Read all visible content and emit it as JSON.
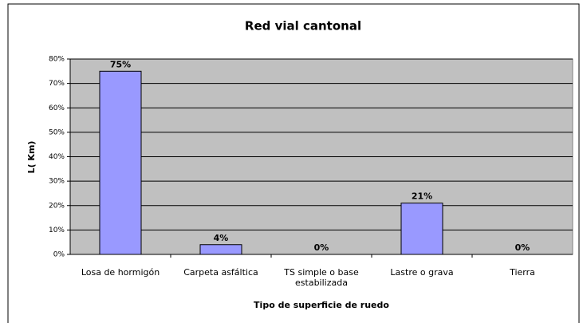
{
  "chart_data": {
    "type": "bar",
    "title": "Red vial cantonal",
    "x_label": "Tipo de superficie de ruedo",
    "y_label": "L( Km)",
    "categories": [
      "Losa de hormigón",
      "Carpeta asfáltica",
      "TS simple o base estabilizada",
      "Lastre o grava",
      "Tierra"
    ],
    "values": [
      75,
      4,
      0,
      21,
      0
    ],
    "value_labels": [
      "75%",
      "4%",
      "0%",
      "21%",
      "0%"
    ],
    "color": "#9999ff",
    "ylim": [
      0,
      80
    ],
    "yticks": [
      {
        "value": 0,
        "label": "0%"
      },
      {
        "value": 10,
        "label": "10%"
      },
      {
        "value": 20,
        "label": "20%"
      },
      {
        "value": 30,
        "label": "30%"
      },
      {
        "value": 40,
        "label": "40%"
      },
      {
        "value": 50,
        "label": "50%"
      },
      {
        "value": 60,
        "label": "60%"
      },
      {
        "value": 70,
        "label": "70%"
      },
      {
        "value": 80,
        "label": "80%"
      }
    ],
    "grid": true
  }
}
